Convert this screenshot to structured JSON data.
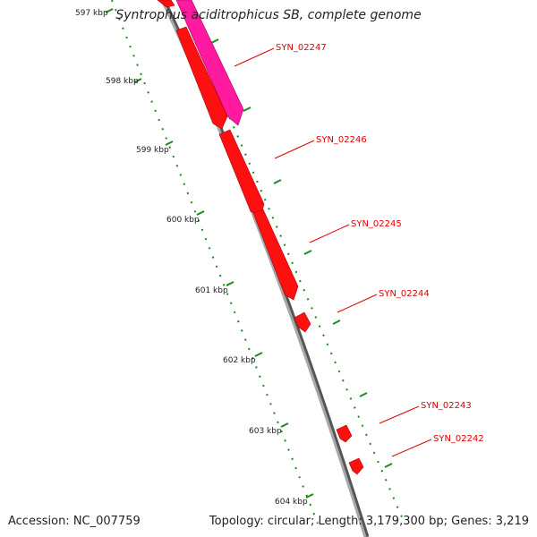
{
  "title": "Syntrophus aciditrophicus SB, complete genome",
  "footer": {
    "accession": "Accession: NC_007759",
    "summary": "Topology: circular; Length: 3,179,300 bp; Genes: 3,219"
  },
  "colors": {
    "backbone": "#8a8a8a",
    "tick": "#1a8a1a",
    "gene_forward": "#ff1010",
    "gene_other": "#ff1aa0",
    "label": "#e00000"
  },
  "kbp_labels": [
    "597 kbp",
    "598 kbp",
    "599 kbp",
    "600 kbp",
    "601 kbp",
    "602 kbp",
    "603 kbp",
    "604 kbp"
  ],
  "genes": [
    {
      "id": "SYN_02247",
      "color": "gene_other"
    },
    {
      "id": "SYN_02246",
      "color": "gene_forward"
    },
    {
      "id": "SYN_02245",
      "color": "gene_forward"
    },
    {
      "id": "SYN_02244",
      "color": "gene_forward"
    },
    {
      "id": "SYN_02243",
      "color": "gene_forward"
    },
    {
      "id": "SYN_02242",
      "color": "gene_forward"
    }
  ]
}
